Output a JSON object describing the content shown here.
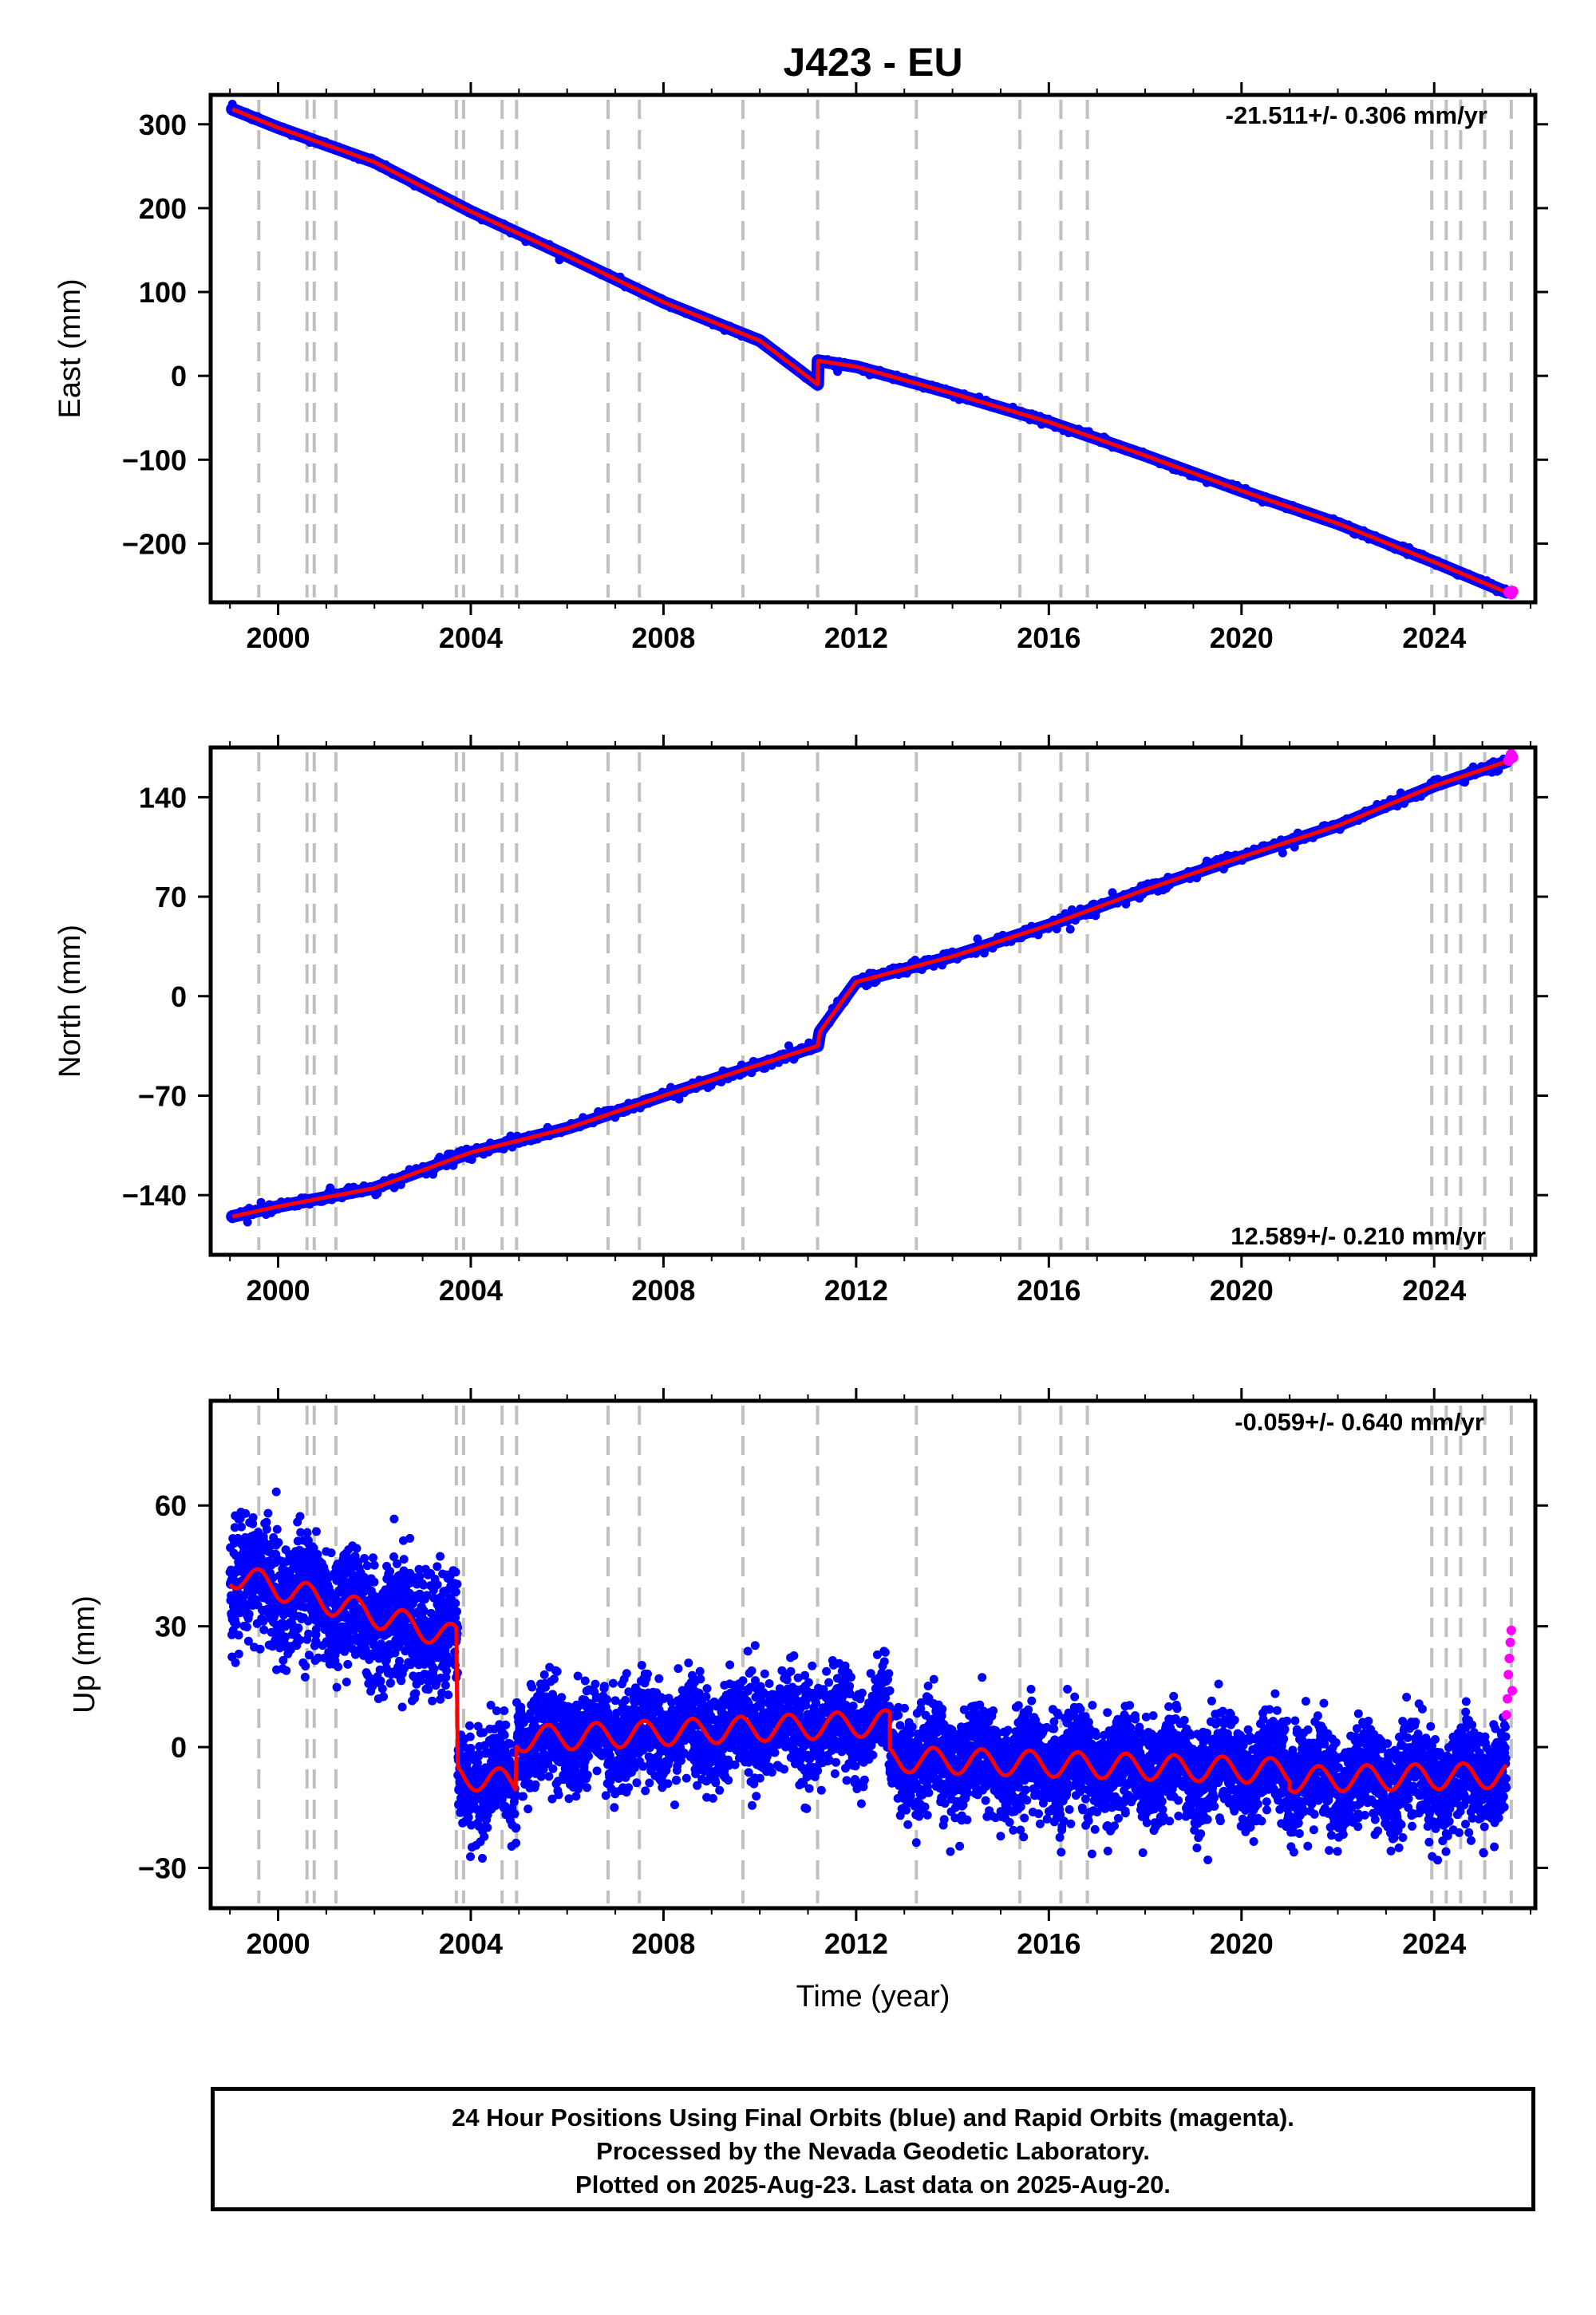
{
  "title": "J423 - EU",
  "xlabel": "Time (year)",
  "x_ticks": [
    "2000",
    "2004",
    "2008",
    "2012",
    "2016",
    "2020",
    "2024"
  ],
  "colors": {
    "final_orbits": "#0000ff",
    "rapid_orbits": "#ff00ff",
    "model": "#ff0000",
    "event_lines": "#c0c0c0",
    "frame": "#000000"
  },
  "event_lines_years": [
    1999.6,
    2000.6,
    2000.75,
    2001.2,
    2003.7,
    2003.85,
    2004.65,
    2004.95,
    2006.85,
    2007.5,
    2009.65,
    2011.2,
    2013.25,
    2015.4,
    2016.25,
    2016.8,
    2023.95,
    2024.25,
    2024.55,
    2025.05,
    2025.6
  ],
  "footer": {
    "line1": "24 Hour Positions Using Final Orbits (blue) and Rapid Orbits (magenta).",
    "line2": "Processed by the Nevada Geodetic Laboratory.",
    "line3": "Plotted on 2025-Aug-23. Last data on 2025-Aug-20."
  },
  "chart_data": [
    {
      "type": "scatter",
      "ylabel": "East (mm)",
      "rate_label": "-21.511+/- 0.306 mm/yr",
      "rate_position": "top-right",
      "xlim": [
        1998.6,
        2026.1
      ],
      "ylim": [
        -270,
        335
      ],
      "y_ticks": [
        300,
        200,
        100,
        0,
        -100,
        -200
      ],
      "y_tick_labels": [
        "300",
        "200",
        "100",
        "0",
        "−100",
        "−200"
      ],
      "series": [
        {
          "name": "Final Orbits",
          "x": [
            1999.05,
            2000,
            2002,
            2004,
            2006,
            2008,
            2010,
            2011.2,
            2011.21,
            2012,
            2014,
            2016,
            2018,
            2020,
            2022,
            2024,
            2025.5
          ],
          "y": [
            318,
            296,
            255,
            196,
            143,
            88,
            42,
            -10,
            18,
            11,
            -21,
            -55,
            -95,
            -137,
            -176,
            -222,
            -258
          ]
        },
        {
          "name": "Rapid Orbits",
          "x": [
            2025.55,
            2025.6,
            2025.63
          ],
          "y": [
            -258,
            -260,
            -257
          ]
        }
      ]
    },
    {
      "type": "scatter",
      "ylabel": "North (mm)",
      "rate_label": "12.589+/- 0.210 mm/yr",
      "rate_position": "bottom-right",
      "xlim": [
        1998.6,
        2026.1
      ],
      "ylim": [
        -182,
        175
      ],
      "y_ticks": [
        140,
        70,
        0,
        -70,
        -140
      ],
      "y_tick_labels": [
        "140",
        "70",
        "0",
        "−70",
        "−140"
      ],
      "series": [
        {
          "name": "Final Orbits",
          "x": [
            1999.05,
            2000,
            2002,
            2004,
            2006,
            2008,
            2010,
            2011.2,
            2011.25,
            2012,
            2014,
            2016,
            2018,
            2020,
            2022,
            2024,
            2025.5
          ],
          "y": [
            -155,
            -148,
            -135,
            -110,
            -93,
            -70,
            -48,
            -35,
            -25,
            10,
            28,
            50,
            75,
            98,
            120,
            148,
            165
          ]
        },
        {
          "name": "Rapid Orbits",
          "x": [
            2025.55,
            2025.6,
            2025.63
          ],
          "y": [
            166,
            170,
            168
          ]
        }
      ]
    },
    {
      "type": "scatter",
      "ylabel": "Up (mm)",
      "rate_label": "-0.059+/- 0.640 mm/yr",
      "rate_position": "top-right",
      "xlim": [
        1998.6,
        2026.1
      ],
      "ylim": [
        -40,
        86
      ],
      "y_ticks": [
        60,
        30,
        0,
        -30
      ],
      "y_tick_labels": [
        "60",
        "30",
        "0",
        "−30"
      ],
      "segments": [
        {
          "start": 1999.0,
          "end": 2003.73,
          "level_start": 43,
          "level_end": 27
        },
        {
          "start": 2003.73,
          "end": 2004.95,
          "level_start": -7,
          "level_end": -9
        },
        {
          "start": 2004.95,
          "end": 2012.7,
          "level_start": 2,
          "level_end": 6
        },
        {
          "start": 2012.7,
          "end": 2021.0,
          "level_start": -3,
          "level_end": -6
        },
        {
          "start": 2021.0,
          "end": 2025.5,
          "level_start": -8,
          "level_end": -7
        }
      ],
      "rapid_orbits": {
        "x": [
          2025.5,
          2025.52,
          2025.54,
          2025.56,
          2025.58,
          2025.6,
          2025.62
        ],
        "y": [
          8,
          12,
          18,
          22,
          26,
          29,
          14
        ]
      }
    }
  ]
}
